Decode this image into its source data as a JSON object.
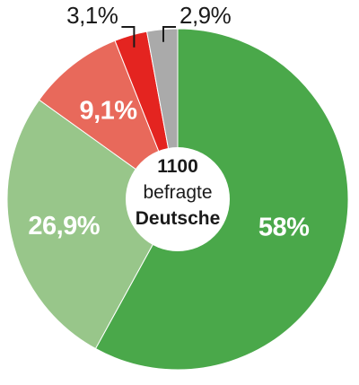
{
  "chart_data": {
    "type": "pie",
    "categories": [
      "58%",
      "26,9%",
      "9,1%",
      "3,1%",
      "2,9%"
    ],
    "values": [
      58,
      26.9,
      9.1,
      3.1,
      2.9
    ],
    "labels": [
      "58%",
      "26,9%",
      "9,1%",
      "3,1%",
      "2,9%"
    ],
    "colors": [
      "#4aa84a",
      "#98c68a",
      "#e8695b",
      "#e42420",
      "#aaaaaa"
    ],
    "center": {
      "count": "1100",
      "line1": "befragte",
      "line2": "Deutsche"
    }
  }
}
